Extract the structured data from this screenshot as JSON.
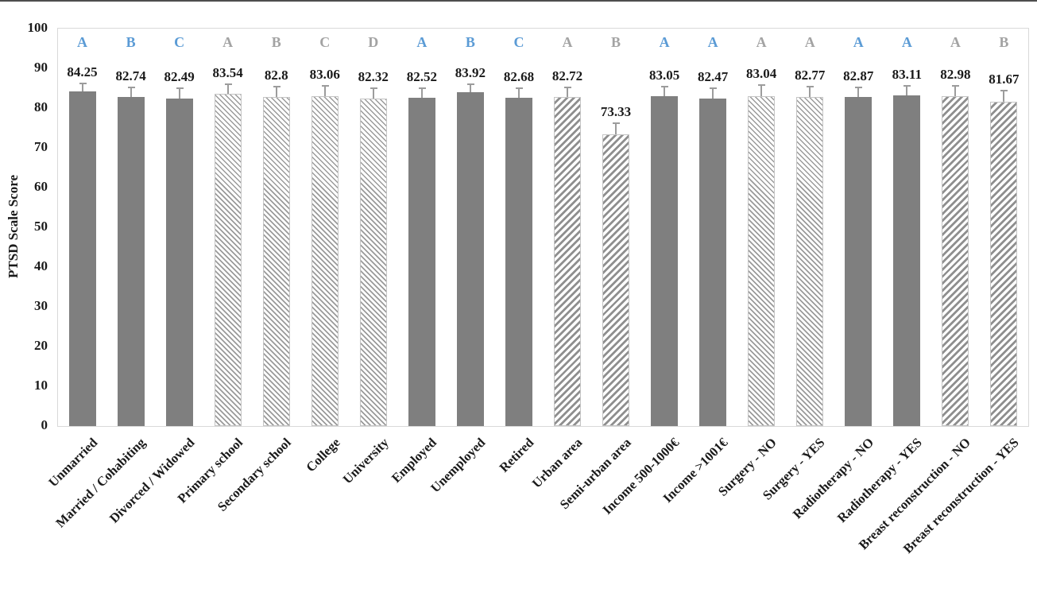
{
  "chart_data": {
    "type": "bar",
    "title": "",
    "xlabel": "",
    "ylabel": "PTSD Scale Score",
    "ylim": [
      0,
      100
    ],
    "yticks": [
      0,
      10,
      20,
      30,
      40,
      50,
      60,
      70,
      80,
      90,
      100
    ],
    "grid": false,
    "legend": false,
    "error_bars": true,
    "colors": {
      "bar_solid": "#7f7f7f",
      "hatch_line_thin": "#9a9a9a",
      "hatch_line_wide": "#8f8f8f",
      "hatch_background": "#ffffff",
      "letter_blue": "#5b9bd5",
      "letter_gray": "#a3a3a3",
      "value_text": "#1a1a1a",
      "axis_text": "#1a1a1a",
      "error_bar": "#9c9c9c",
      "plot_border": "#d9d9d9",
      "top_rule": "#4d4d4d"
    },
    "bars": [
      {
        "category": "Unmarried",
        "value": 84.25,
        "value_label": "84.25",
        "letter": "A",
        "letter_style": "blue",
        "fill": "solid",
        "error": 1.8
      },
      {
        "category": "Married / Cohabiting",
        "value": 82.74,
        "value_label": "82.74",
        "letter": "B",
        "letter_style": "blue",
        "fill": "solid",
        "error": 2.2
      },
      {
        "category": "Divorced / Widowed",
        "value": 82.49,
        "value_label": "82.49",
        "letter": "C",
        "letter_style": "blue",
        "fill": "solid",
        "error": 2.3
      },
      {
        "category": "Primary school",
        "value": 83.54,
        "value_label": "83.54",
        "letter": "A",
        "letter_style": "gray",
        "fill": "diag-down",
        "error": 2.3
      },
      {
        "category": "Secondary school",
        "value": 82.8,
        "value_label": "82.8",
        "letter": "B",
        "letter_style": "gray",
        "fill": "diag-down",
        "error": 2.4
      },
      {
        "category": "College",
        "value": 83.06,
        "value_label": "83.06",
        "letter": "C",
        "letter_style": "gray",
        "fill": "diag-down",
        "error": 2.3
      },
      {
        "category": "University",
        "value": 82.32,
        "value_label": "82.32",
        "letter": "D",
        "letter_style": "gray",
        "fill": "diag-down",
        "error": 2.4
      },
      {
        "category": "Employed",
        "value": 82.52,
        "value_label": "82.52",
        "letter": "A",
        "letter_style": "blue",
        "fill": "solid",
        "error": 2.3
      },
      {
        "category": "Unemployed",
        "value": 83.92,
        "value_label": "83.92",
        "letter": "B",
        "letter_style": "blue",
        "fill": "solid",
        "error": 1.9
      },
      {
        "category": "Retired",
        "value": 82.68,
        "value_label": "82.68",
        "letter": "C",
        "letter_style": "blue",
        "fill": "solid",
        "error": 2.2
      },
      {
        "category": "Urban area",
        "value": 82.72,
        "value_label": "82.72",
        "letter": "A",
        "letter_style": "gray",
        "fill": "diag-up",
        "error": 2.2
      },
      {
        "category": "Semi-urban area",
        "value": 73.33,
        "value_label": "73.33",
        "letter": "B",
        "letter_style": "gray",
        "fill": "diag-up",
        "error": 2.6
      },
      {
        "category": "Income 500-1000€",
        "value": 83.05,
        "value_label": "83.05",
        "letter": "A",
        "letter_style": "blue",
        "fill": "solid",
        "error": 2.2
      },
      {
        "category": "Income >1001€",
        "value": 82.47,
        "value_label": "82.47",
        "letter": "A",
        "letter_style": "blue",
        "fill": "solid",
        "error": 2.4
      },
      {
        "category": "Surgery - NO",
        "value": 83.04,
        "value_label": "83.04",
        "letter": "A",
        "letter_style": "gray",
        "fill": "diag-down",
        "error": 2.5
      },
      {
        "category": "Surgery - YES",
        "value": 82.77,
        "value_label": "82.77",
        "letter": "A",
        "letter_style": "gray",
        "fill": "diag-down",
        "error": 2.4
      },
      {
        "category": "Radiotherapy - NO",
        "value": 82.87,
        "value_label": "82.87",
        "letter": "A",
        "letter_style": "blue",
        "fill": "solid",
        "error": 2.2
      },
      {
        "category": "Radiotherapy - YES",
        "value": 83.11,
        "value_label": "83.11",
        "letter": "A",
        "letter_style": "blue",
        "fill": "solid",
        "error": 2.3
      },
      {
        "category": "Breast reconstruction - NO",
        "value": 82.98,
        "value_label": "82.98",
        "letter": "A",
        "letter_style": "gray",
        "fill": "diag-up",
        "error": 2.4
      },
      {
        "category": "Breast reconstruction - YES",
        "value": 81.67,
        "value_label": "81.67",
        "letter": "B",
        "letter_style": "gray",
        "fill": "diag-up",
        "error": 2.5
      }
    ]
  }
}
